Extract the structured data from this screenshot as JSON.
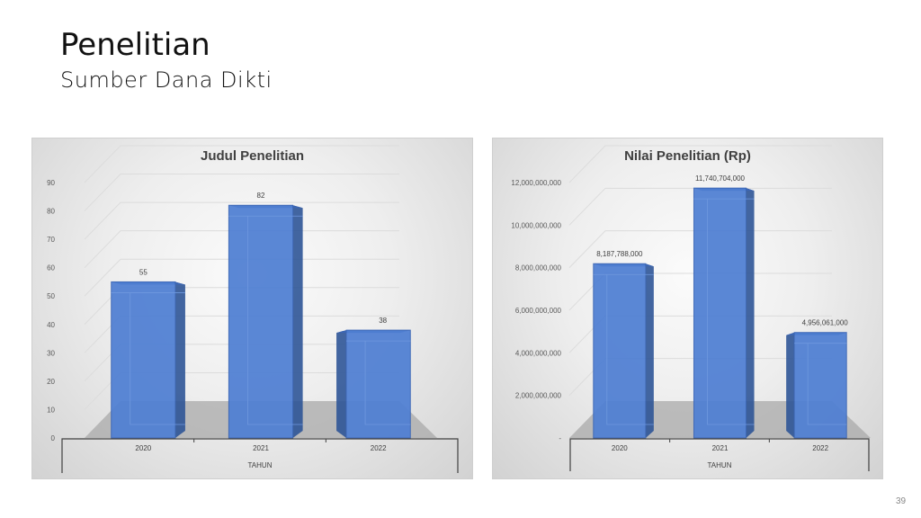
{
  "slide": {
    "title": "Penelitian",
    "subtitle": "Sumber Dana Dikti",
    "page_number": "39"
  },
  "chart_data": [
    {
      "type": "bar",
      "title": "Judul Penelitian",
      "categories": [
        "2020",
        "2021",
        "2022"
      ],
      "values": [
        55,
        82,
        38
      ],
      "data_labels": [
        "55",
        "82",
        "38"
      ],
      "xlabel": "TAHUN",
      "ylabel": "",
      "ylim": [
        0,
        90
      ],
      "yticks": [
        "0",
        "10",
        "20",
        "30",
        "40",
        "50",
        "60",
        "70",
        "80",
        "90"
      ],
      "grid": true,
      "bar_color": "#4F7FD3",
      "three_d": true
    },
    {
      "type": "bar",
      "title": "Nilai Penelitian (Rp)",
      "categories": [
        "2020",
        "2021",
        "2022"
      ],
      "values": [
        8187788000,
        11740704000,
        4956061000
      ],
      "data_labels": [
        "8,187,788,000",
        "11,740,704,000",
        "4,956,061,000"
      ],
      "xlabel": "TAHUN",
      "ylabel": "",
      "ylim": [
        0,
        12000000000
      ],
      "yticks": [
        "-",
        "2,000,000,000",
        "4,000,000,000",
        "6,000,000,000",
        "8,000,000,000",
        "10,000,000,000",
        "12,000,000,000"
      ],
      "grid": true,
      "bar_color": "#4F7FD3",
      "three_d": true
    }
  ]
}
